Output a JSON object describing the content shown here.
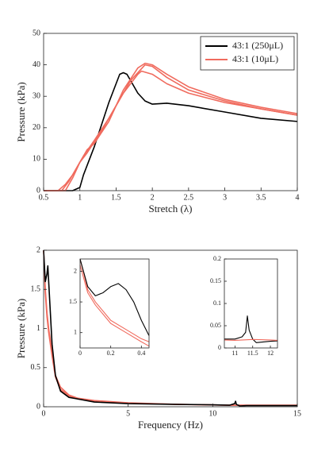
{
  "chart_data": [
    {
      "type": "line",
      "xlabel": "Stretch (λ)",
      "ylabel": "Pressure (kPa)",
      "xlim": [
        0.5,
        4
      ],
      "xticks": [
        0.5,
        1,
        1.5,
        2,
        2.5,
        3,
        3.5,
        4
      ],
      "ylim": [
        0,
        50
      ],
      "yticks": [
        0,
        10,
        20,
        30,
        40,
        50
      ],
      "legend": "upper right",
      "series": [
        {
          "name": "43:1 (250μL)",
          "color": "#000000",
          "x": [
            0.5,
            0.9,
            0.95,
            1.0,
            1.05,
            1.1,
            1.2,
            1.3,
            1.4,
            1.5,
            1.55,
            1.6,
            1.65,
            1.7,
            1.8,
            1.9,
            2.0,
            2.2,
            2.5,
            3,
            3.5,
            4
          ],
          "values": [
            0,
            0,
            0.5,
            1,
            5,
            8,
            14,
            21,
            28,
            34,
            37,
            37.5,
            37,
            35,
            31,
            28.5,
            27.5,
            27.8,
            27,
            25,
            23,
            22
          ]
        },
        {
          "name": "43:1 (10μL)",
          "color": "#f06b5e",
          "x": [
            0.5,
            0.7,
            0.8,
            0.9,
            1.0,
            1.1,
            1.2,
            1.4,
            1.6,
            1.8,
            1.9,
            2.0,
            2.2,
            2.5,
            3,
            3.5,
            4
          ],
          "values": [
            0,
            0,
            2,
            5,
            9,
            13,
            15,
            22,
            32,
            39,
            40.5,
            40,
            37,
            33,
            29,
            26.5,
            24.5
          ]
        },
        {
          "color": "#f06b5e",
          "x": [
            0.5,
            0.75,
            0.85,
            0.95,
            1.05,
            1.2,
            1.4,
            1.6,
            1.8,
            1.85,
            2.0,
            2.2,
            2.5,
            3,
            3.5,
            4
          ],
          "values": [
            0,
            0,
            3,
            7,
            11,
            16,
            23,
            31,
            37,
            38,
            37,
            34,
            31,
            28,
            26,
            24
          ]
        },
        {
          "color": "#f06b5e",
          "x": [
            0.5,
            0.8,
            0.9,
            1.0,
            1.1,
            1.3,
            1.5,
            1.7,
            1.9,
            2.0,
            2.2,
            2.5,
            3,
            3.5,
            4
          ],
          "values": [
            0,
            0,
            4,
            9,
            12,
            19,
            27,
            35,
            40,
            39.5,
            36,
            32,
            28.5,
            26,
            24
          ]
        }
      ]
    },
    {
      "type": "line",
      "xlabel": "Frequency (Hz)",
      "ylabel": "Pressure (kPa)",
      "xlim": [
        0,
        15
      ],
      "xticks": [
        0,
        5,
        10,
        15
      ],
      "ylim": [
        0,
        2
      ],
      "yticks": [
        0,
        0.5,
        1,
        1.5,
        2
      ],
      "series": [
        {
          "color": "#f06b5e",
          "x": [
            0,
            0.1,
            0.2,
            0.3,
            0.4,
            0.5,
            0.7,
            1,
            1.5,
            2,
            3,
            5,
            8,
            11,
            12,
            15
          ],
          "values": [
            2,
            1.5,
            1.2,
            1.0,
            0.85,
            0.7,
            0.4,
            0.25,
            0.15,
            0.11,
            0.08,
            0.05,
            0.03,
            0.02,
            0.02,
            0.02
          ]
        },
        {
          "color": "#f06b5e",
          "x": [
            0,
            0.1,
            0.2,
            0.3,
            0.4,
            0.5,
            0.7,
            1,
            1.5,
            2,
            3,
            5,
            8,
            11,
            12,
            15
          ],
          "values": [
            2,
            1.45,
            1.15,
            0.95,
            0.8,
            0.65,
            0.38,
            0.22,
            0.14,
            0.1,
            0.07,
            0.045,
            0.03,
            0.02,
            0.018,
            0.018
          ]
        },
        {
          "color": "#000000",
          "x": [
            0,
            0.1,
            0.2,
            0.25,
            0.3,
            0.4,
            0.5,
            0.7,
            1,
            1.5,
            2,
            3,
            5,
            8,
            10,
            11,
            11.3,
            11.35,
            11.4,
            11.6,
            12,
            15
          ],
          "values": [
            2,
            1.6,
            1.7,
            1.8,
            1.6,
            1.2,
            0.8,
            0.4,
            0.2,
            0.12,
            0.1,
            0.06,
            0.04,
            0.03,
            0.025,
            0.02,
            0.04,
            0.07,
            0.03,
            0.01,
            0.015,
            0.015
          ]
        }
      ]
    },
    {
      "type": "line",
      "xlim": [
        0,
        0.45
      ],
      "xticks": [
        0,
        0.2,
        0.4
      ],
      "ylim": [
        0.75,
        2.2
      ],
      "yticks": [
        1,
        1.5,
        2
      ],
      "series": [
        {
          "color": "#f06b5e",
          "x": [
            0,
            0.05,
            0.1,
            0.15,
            0.2,
            0.3,
            0.4,
            0.45
          ],
          "values": [
            2.2,
            1.7,
            1.5,
            1.35,
            1.2,
            1.05,
            0.9,
            0.85
          ]
        },
        {
          "color": "#f06b5e",
          "x": [
            0,
            0.05,
            0.1,
            0.15,
            0.2,
            0.3,
            0.4,
            0.45
          ],
          "values": [
            2.1,
            1.65,
            1.45,
            1.3,
            1.15,
            1.0,
            0.85,
            0.78
          ]
        },
        {
          "color": "#000000",
          "x": [
            0,
            0.05,
            0.1,
            0.15,
            0.2,
            0.25,
            0.3,
            0.35,
            0.4,
            0.45
          ],
          "values": [
            2.2,
            1.75,
            1.6,
            1.65,
            1.75,
            1.8,
            1.7,
            1.5,
            1.2,
            0.95
          ]
        }
      ]
    },
    {
      "type": "line",
      "xlim": [
        10.7,
        12.2
      ],
      "xticks": [
        11,
        11.5,
        12
      ],
      "ylim": [
        0,
        0.2
      ],
      "yticks": [
        0,
        0.05,
        0.1,
        0.15,
        0.2
      ],
      "series": [
        {
          "color": "#000000",
          "x": [
            10.7,
            11,
            11.2,
            11.3,
            11.35,
            11.4,
            11.5,
            11.6,
            12,
            12.2
          ],
          "values": [
            0.02,
            0.02,
            0.025,
            0.035,
            0.072,
            0.04,
            0.02,
            0.012,
            0.015,
            0.016
          ]
        },
        {
          "color": "#f06b5e",
          "x": [
            10.7,
            11,
            11.5,
            12,
            12.2
          ],
          "values": [
            0.018,
            0.017,
            0.019,
            0.018,
            0.017
          ]
        }
      ]
    }
  ]
}
